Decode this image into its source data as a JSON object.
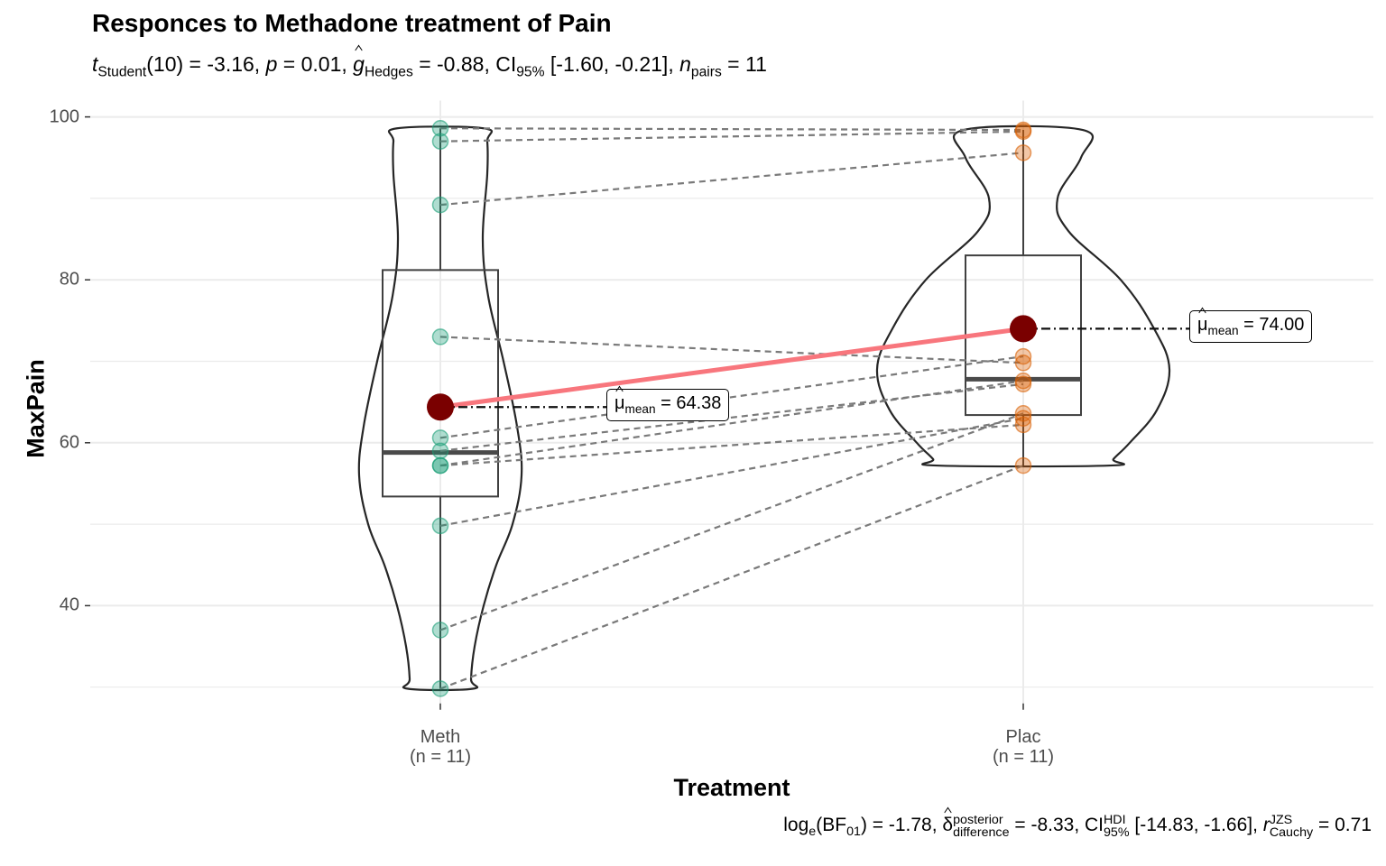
{
  "chart_data": {
    "type": "violin-box-paired",
    "title": "Responces to Methadone treatment of Pain",
    "subtitle": {
      "t_label": "t",
      "t_sub": "Student",
      "t_df": "(10) = -3.16, ",
      "p_label": "p",
      "p_value": " = 0.01, ",
      "g_label": "g",
      "g_sub": "Hedges",
      "g_value": " = -0.88, CI",
      "ci_sub": "95%",
      "ci_value": " [-1.60, -0.21], ",
      "n_label": "n",
      "n_sub": "pairs",
      "n_value": " = 11"
    },
    "caption": {
      "log_prefix": "log",
      "log_sub": "e",
      "bf_open": "(BF",
      "bf_sub": "01",
      "bf_value": ") = -1.78, ",
      "delta_sym": "δ",
      "delta_sup": "posterior",
      "delta_sub": "difference",
      "delta_value": " = -8.33, CI",
      "ci_sup": "HDI",
      "ci_sub": "95%",
      "ci_value": " [-14.83, -1.66], ",
      "r_label": "r",
      "r_sup": "JZS",
      "r_sub": "Cauchy",
      "r_value": " = 0.71"
    },
    "xlabel": "Treatment",
    "ylabel": "MaxPain",
    "ylim": [
      28,
      102
    ],
    "yticks": [
      40,
      60,
      80,
      100
    ],
    "grid": true,
    "categories": [
      {
        "name": "Meth",
        "n_label": "(n = 11)",
        "color": "#1b9e77"
      },
      {
        "name": "Plac",
        "n_label": "(n = 11)",
        "color": "#d95f02"
      }
    ],
    "pairs": [
      [
        98.6,
        98.4
      ],
      [
        97.0,
        98.2
      ],
      [
        89.2,
        95.6
      ],
      [
        73.0,
        69.8
      ],
      [
        60.6,
        70.6
      ],
      [
        59.0,
        67.2
      ],
      [
        57.2,
        62.2
      ],
      [
        57.2,
        67.6
      ],
      [
        49.8,
        63.0
      ],
      [
        37.0,
        63.6
      ],
      [
        29.8,
        57.2
      ]
    ],
    "box": [
      {
        "q1": 53.4,
        "median": 58.8,
        "q3": 81.2,
        "min": 29.8,
        "max": 98.6
      },
      {
        "q1": 63.4,
        "median": 67.8,
        "q3": 83.0,
        "min": 57.2,
        "max": 98.4
      }
    ],
    "means": [
      64.38,
      74.0
    ],
    "mean_labels": [
      {
        "mu": "μ",
        "sub": "mean",
        "value": " = 64.38"
      },
      {
        "mu": "μ",
        "sub": "mean",
        "value": " = 74.00"
      }
    ],
    "colors": {
      "mean_point": "#7a0000",
      "mean_line": "#f8767d",
      "grid": "#ebebeb"
    }
  }
}
